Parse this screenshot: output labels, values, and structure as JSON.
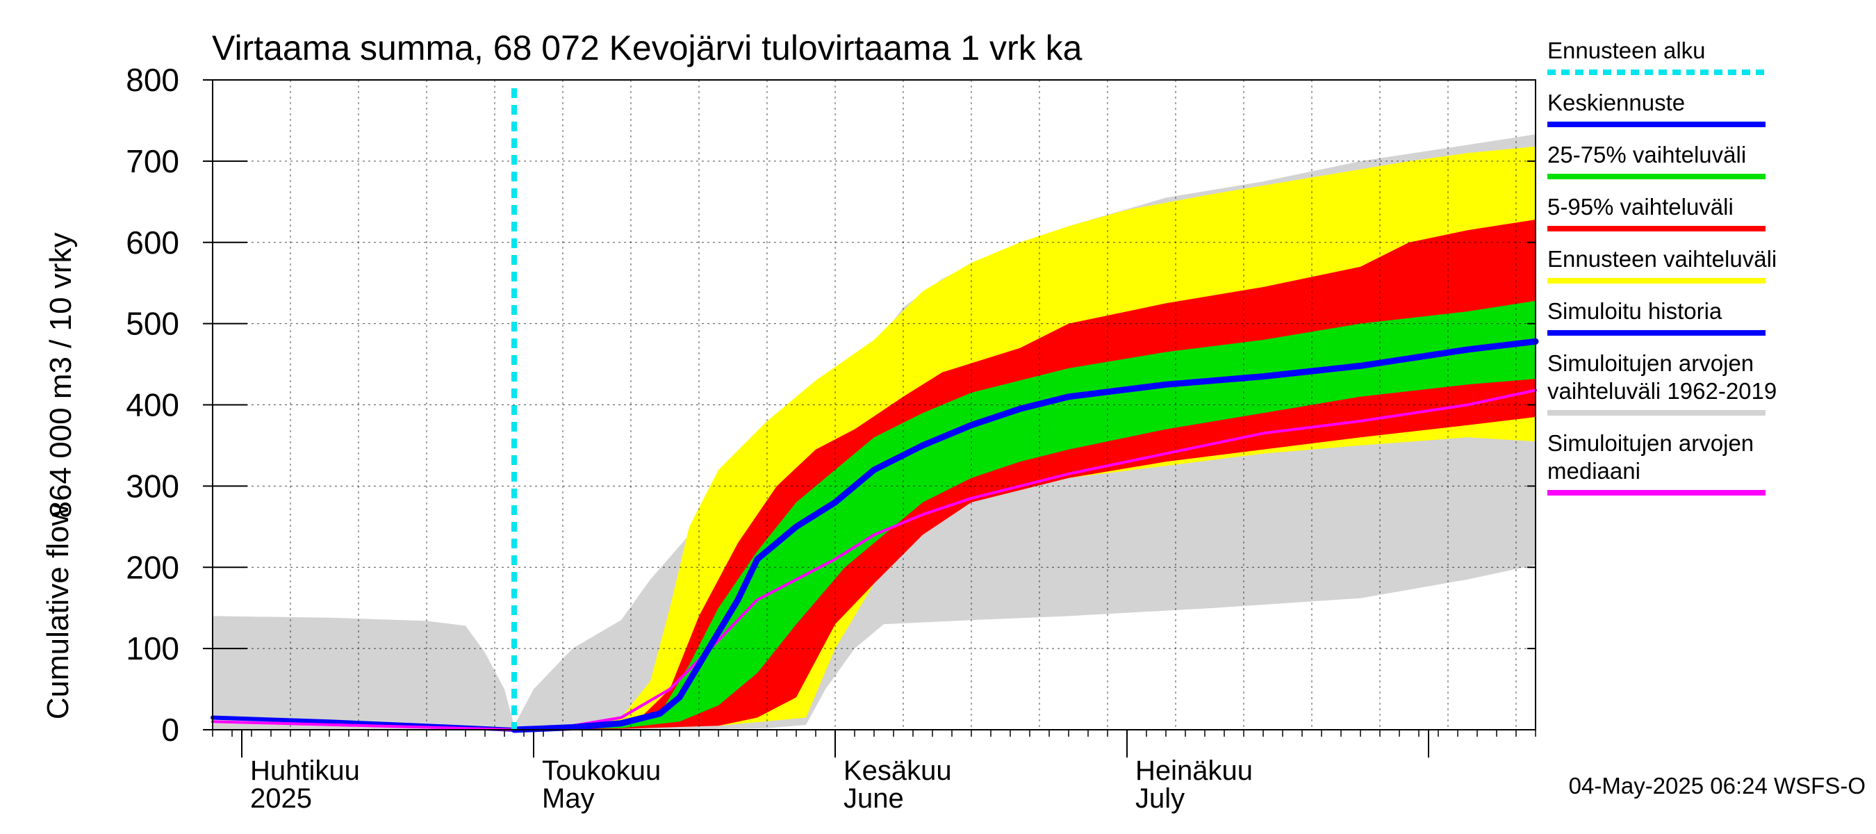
{
  "chart_data": {
    "type": "area",
    "title": "Virtaama summa, 68 072 Kevojärvi tulovirtaama 1 vrk ka",
    "ylabel_primary": "864 000 m3 / 10 vrky",
    "ylabel_secondary": "Cumulative flow",
    "ylim": [
      0,
      800
    ],
    "yticks": [
      0,
      100,
      200,
      300,
      400,
      500,
      600,
      700,
      800
    ],
    "x_start": "2025-03-29",
    "x_end": "2025-08-12",
    "months": [
      {
        "date": "2025-04-01",
        "label1": "Huhtikuu",
        "label2": "2025"
      },
      {
        "date": "2025-05-01",
        "label1": "Toukokuu",
        "label2": "May"
      },
      {
        "date": "2025-06-01",
        "label1": "Kesäkuu",
        "label2": "June"
      },
      {
        "date": "2025-07-01",
        "label1": "Heinäkuu",
        "label2": "July"
      },
      {
        "date": "2025-08-01",
        "label1": "",
        "label2": ""
      }
    ],
    "forecast_start": "2025-04-29",
    "grid": true,
    "legend_position": "right",
    "footer": "04-May-2025 06:24 WSFS-O",
    "legend": [
      {
        "label": "Ennusteen alku",
        "color": "#00e5ee",
        "style": "dotted"
      },
      {
        "label": "Keskiennuste",
        "color": "#0000ff",
        "style": "line"
      },
      {
        "label": "25-75% vaihteluväli",
        "color": "#00e000",
        "style": "line"
      },
      {
        "label": "5-95% vaihteluväli",
        "color": "#ff0000",
        "style": "line"
      },
      {
        "label": "Ennusteen vaihteluväli",
        "color": "#ffff00",
        "style": "line"
      },
      {
        "label": "Simuloitu historia",
        "color": "#0000ff",
        "style": "line"
      },
      {
        "label": "Simuloitujen arvojen",
        "label2": "vaihteluväli 1962-2019",
        "color": "#d3d3d3",
        "style": "line"
      },
      {
        "label": "Simuloitujen arvojen",
        "label2": "mediaani",
        "color": "#ff00ff",
        "style": "line"
      }
    ],
    "colors": {
      "hist_range": "#d3d3d3",
      "forecast_range": "#ffff00",
      "p5_95": "#ff0000",
      "p25_75": "#00e000",
      "mean": "#0000ff",
      "median": "#ff00ff",
      "forecast_start": "#00e5ee"
    },
    "series": {
      "hist_range": {
        "upper": [
          [
            "2025-03-29",
            140
          ],
          [
            "2025-04-10",
            138
          ],
          [
            "2025-04-20",
            134
          ],
          [
            "2025-04-24",
            128
          ],
          [
            "2025-04-26",
            95
          ],
          [
            "2025-04-28",
            50
          ],
          [
            "2025-04-29",
            5
          ],
          [
            "2025-05-01",
            50
          ],
          [
            "2025-05-05",
            100
          ],
          [
            "2025-05-10",
            135
          ],
          [
            "2025-05-13",
            185
          ],
          [
            "2025-05-17",
            240
          ],
          [
            "2025-05-20",
            275
          ],
          [
            "2025-05-25",
            300
          ],
          [
            "2025-05-28",
            315
          ],
          [
            "2025-05-31",
            400
          ],
          [
            "2025-06-04",
            455
          ],
          [
            "2025-06-08",
            520
          ],
          [
            "2025-06-12",
            555
          ],
          [
            "2025-06-18",
            590
          ],
          [
            "2025-06-25",
            620
          ],
          [
            "2025-07-05",
            655
          ],
          [
            "2025-07-15",
            675
          ],
          [
            "2025-07-25",
            700
          ],
          [
            "2025-08-05",
            720
          ],
          [
            "2025-08-12",
            733
          ]
        ],
        "lower": [
          [
            "2025-03-29",
            0
          ],
          [
            "2025-04-29",
            0
          ],
          [
            "2025-05-15",
            0
          ],
          [
            "2025-05-25",
            2
          ],
          [
            "2025-05-29",
            6
          ],
          [
            "2025-05-31",
            50
          ],
          [
            "2025-06-03",
            100
          ],
          [
            "2025-06-06",
            130
          ],
          [
            "2025-06-15",
            135
          ],
          [
            "2025-06-25",
            140
          ],
          [
            "2025-07-10",
            150
          ],
          [
            "2025-07-25",
            162
          ],
          [
            "2025-08-05",
            185
          ],
          [
            "2025-08-12",
            203
          ]
        ]
      },
      "forecast_range": {
        "upper": [
          [
            "2025-04-29",
            0
          ],
          [
            "2025-05-05",
            5
          ],
          [
            "2025-05-10",
            15
          ],
          [
            "2025-05-13",
            60
          ],
          [
            "2025-05-15",
            150
          ],
          [
            "2025-05-17",
            250
          ],
          [
            "2025-05-20",
            320
          ],
          [
            "2025-05-25",
            380
          ],
          [
            "2025-05-30",
            430
          ],
          [
            "2025-06-05",
            480
          ],
          [
            "2025-06-10",
            540
          ],
          [
            "2025-06-15",
            575
          ],
          [
            "2025-06-20",
            600
          ],
          [
            "2025-06-25",
            620
          ],
          [
            "2025-07-01",
            640
          ],
          [
            "2025-07-10",
            660
          ],
          [
            "2025-07-20",
            680
          ],
          [
            "2025-07-30",
            700
          ],
          [
            "2025-08-05",
            710
          ],
          [
            "2025-08-12",
            718
          ]
        ],
        "lower": [
          [
            "2025-04-29",
            0
          ],
          [
            "2025-05-10",
            2
          ],
          [
            "2025-05-20",
            5
          ],
          [
            "2025-05-29",
            15
          ],
          [
            "2025-06-01",
            100
          ],
          [
            "2025-06-05",
            180
          ],
          [
            "2025-06-10",
            260
          ],
          [
            "2025-06-15",
            290
          ],
          [
            "2025-06-25",
            310
          ],
          [
            "2025-07-05",
            325
          ],
          [
            "2025-07-15",
            340
          ],
          [
            "2025-07-25",
            350
          ],
          [
            "2025-08-05",
            360
          ],
          [
            "2025-08-12",
            355
          ]
        ]
      },
      "p5_95": {
        "upper": [
          [
            "2025-04-29",
            0
          ],
          [
            "2025-05-08",
            3
          ],
          [
            "2025-05-12",
            15
          ],
          [
            "2025-05-15",
            50
          ],
          [
            "2025-05-18",
            140
          ],
          [
            "2025-05-22",
            230
          ],
          [
            "2025-05-26",
            300
          ],
          [
            "2025-05-30",
            345
          ],
          [
            "2025-06-03",
            370
          ],
          [
            "2025-06-08",
            410
          ],
          [
            "2025-06-12",
            440
          ],
          [
            "2025-06-16",
            455
          ],
          [
            "2025-06-20",
            470
          ],
          [
            "2025-06-25",
            500
          ],
          [
            "2025-07-05",
            525
          ],
          [
            "2025-07-15",
            545
          ],
          [
            "2025-07-25",
            570
          ],
          [
            "2025-07-30",
            600
          ],
          [
            "2025-08-05",
            615
          ],
          [
            "2025-08-12",
            628
          ]
        ],
        "lower": [
          [
            "2025-04-29",
            0
          ],
          [
            "2025-05-10",
            1
          ],
          [
            "2025-05-20",
            5
          ],
          [
            "2025-05-24",
            15
          ],
          [
            "2025-05-28",
            40
          ],
          [
            "2025-06-01",
            130
          ],
          [
            "2025-06-05",
            180
          ],
          [
            "2025-06-10",
            240
          ],
          [
            "2025-06-15",
            280
          ],
          [
            "2025-06-20",
            295
          ],
          [
            "2025-06-25",
            310
          ],
          [
            "2025-07-05",
            330
          ],
          [
            "2025-07-15",
            345
          ],
          [
            "2025-07-25",
            360
          ],
          [
            "2025-08-05",
            375
          ],
          [
            "2025-08-12",
            385
          ]
        ]
      },
      "p25_75": {
        "upper": [
          [
            "2025-04-29",
            0
          ],
          [
            "2025-05-10",
            4
          ],
          [
            "2025-05-14",
            20
          ],
          [
            "2025-05-17",
            80
          ],
          [
            "2025-05-20",
            150
          ],
          [
            "2025-05-24",
            220
          ],
          [
            "2025-05-28",
            280
          ],
          [
            "2025-06-01",
            320
          ],
          [
            "2025-06-05",
            360
          ],
          [
            "2025-06-10",
            390
          ],
          [
            "2025-06-15",
            415
          ],
          [
            "2025-06-20",
            430
          ],
          [
            "2025-06-25",
            445
          ],
          [
            "2025-07-05",
            465
          ],
          [
            "2025-07-15",
            480
          ],
          [
            "2025-07-25",
            500
          ],
          [
            "2025-08-05",
            515
          ],
          [
            "2025-08-12",
            528
          ]
        ],
        "lower": [
          [
            "2025-04-29",
            0
          ],
          [
            "2025-05-10",
            2
          ],
          [
            "2025-05-16",
            10
          ],
          [
            "2025-05-20",
            30
          ],
          [
            "2025-05-24",
            70
          ],
          [
            "2025-05-28",
            130
          ],
          [
            "2025-06-02",
            200
          ],
          [
            "2025-06-06",
            240
          ],
          [
            "2025-06-10",
            280
          ],
          [
            "2025-06-15",
            310
          ],
          [
            "2025-06-20",
            330
          ],
          [
            "2025-06-25",
            345
          ],
          [
            "2025-07-05",
            370
          ],
          [
            "2025-07-15",
            390
          ],
          [
            "2025-07-25",
            410
          ],
          [
            "2025-08-05",
            425
          ],
          [
            "2025-08-12",
            432
          ]
        ]
      },
      "mean": [
        [
          "2025-04-29",
          0
        ],
        [
          "2025-05-05",
          3
        ],
        [
          "2025-05-10",
          8
        ],
        [
          "2025-05-14",
          20
        ],
        [
          "2025-05-16",
          40
        ],
        [
          "2025-05-19",
          100
        ],
        [
          "2025-05-22",
          160
        ],
        [
          "2025-05-24",
          210
        ],
        [
          "2025-05-28",
          250
        ],
        [
          "2025-06-01",
          280
        ],
        [
          "2025-06-05",
          320
        ],
        [
          "2025-06-10",
          350
        ],
        [
          "2025-06-15",
          375
        ],
        [
          "2025-06-20",
          395
        ],
        [
          "2025-06-25",
          410
        ],
        [
          "2025-07-05",
          425
        ],
        [
          "2025-07-15",
          435
        ],
        [
          "2025-07-25",
          448
        ],
        [
          "2025-08-05",
          468
        ],
        [
          "2025-08-12",
          478
        ]
      ],
      "history": [
        [
          "2025-03-29",
          15
        ],
        [
          "2025-04-10",
          10
        ],
        [
          "2025-04-20",
          5
        ],
        [
          "2025-04-29",
          0
        ]
      ],
      "median": [
        [
          "2025-03-29",
          10
        ],
        [
          "2025-04-20",
          3
        ],
        [
          "2025-04-29",
          0
        ],
        [
          "2025-05-05",
          5
        ],
        [
          "2025-05-10",
          15
        ],
        [
          "2025-05-15",
          50
        ],
        [
          "2025-05-20",
          110
        ],
        [
          "2025-05-24",
          160
        ],
        [
          "2025-05-28",
          185
        ],
        [
          "2025-06-01",
          210
        ],
        [
          "2025-06-05",
          240
        ],
        [
          "2025-06-10",
          265
        ],
        [
          "2025-06-15",
          285
        ],
        [
          "2025-06-20",
          300
        ],
        [
          "2025-06-25",
          315
        ],
        [
          "2025-07-05",
          340
        ],
        [
          "2025-07-15",
          365
        ],
        [
          "2025-07-25",
          380
        ],
        [
          "2025-08-05",
          400
        ],
        [
          "2025-08-12",
          418
        ]
      ]
    }
  }
}
